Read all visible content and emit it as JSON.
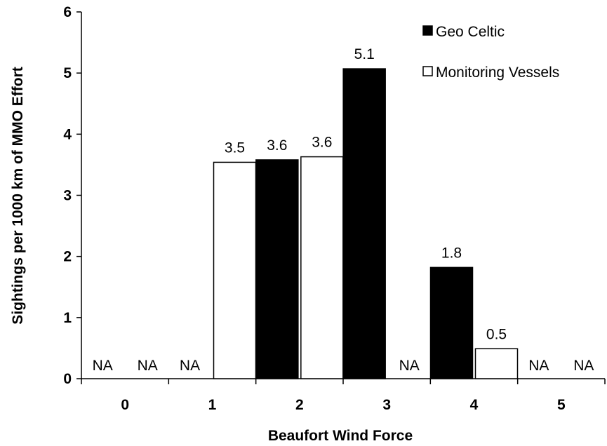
{
  "chart_data": {
    "type": "bar",
    "title": "",
    "xlabel": "Beaufort  Wind Force",
    "ylabel": "Sightings per 1000 km of MMO Effort",
    "ylim": [
      0,
      6
    ],
    "yticks": [
      "0",
      "1",
      "2",
      "3",
      "4",
      "5",
      "6"
    ],
    "categories": [
      "0",
      "1",
      "2",
      "3",
      "4",
      "5"
    ],
    "series": [
      {
        "name": "Geo Celtic",
        "color": "#000000",
        "values": [
          null,
          null,
          3.58,
          5.07,
          1.82,
          null
        ],
        "labels": [
          "NA",
          "NA",
          "3.6",
          "5.1",
          "1.8",
          "NA"
        ]
      },
      {
        "name": "Monitoring Vessels",
        "color": "#ffffff",
        "values": [
          null,
          3.54,
          3.63,
          null,
          0.49,
          null
        ],
        "labels": [
          "NA",
          "3.5",
          "3.6",
          "NA",
          "0.5",
          "NA"
        ]
      }
    ],
    "legend_position": "top-right",
    "grid": false
  }
}
